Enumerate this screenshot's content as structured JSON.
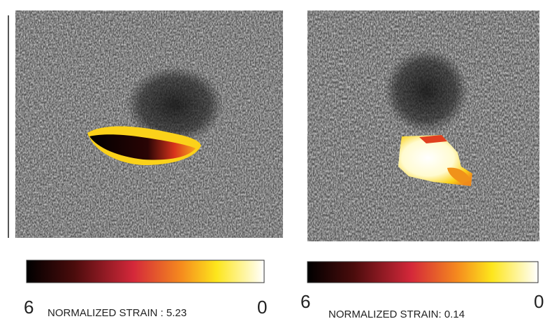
{
  "panels": [
    {
      "min_label": "6",
      "caption": "NORMALIZED STRAIN : 5.23",
      "max_label": "0"
    },
    {
      "min_label": "6",
      "caption": "NORMALIZED STRAIN: 0.14",
      "max_label": "0"
    }
  ]
}
